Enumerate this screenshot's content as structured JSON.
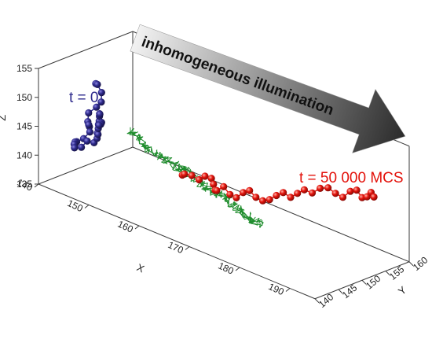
{
  "chart_data": {
    "type": "scatter",
    "projection": "3d",
    "axes": {
      "x": {
        "label": "X",
        "range": [
          140,
          195
        ],
        "ticks": [
          "140",
          "150",
          "160",
          "170",
          "180",
          "190"
        ]
      },
      "y": {
        "label": "Y",
        "range": [
          140,
          160
        ],
        "ticks": [
          "140",
          "145",
          "150",
          "155",
          "160"
        ]
      },
      "z": {
        "label": "Z",
        "range": [
          135,
          155
        ],
        "ticks": [
          "135",
          "140",
          "145",
          "150",
          "155"
        ]
      }
    },
    "annotations": {
      "start": "t = 0",
      "end": "t = 50 000 MCS",
      "arrow": "inhomogeneous illumination"
    },
    "colors": {
      "start_chain": "#2e2a8c",
      "end_chain": "#e3120b",
      "trajectory": "#1e8c2c",
      "arrow_dark": "#2b2b2b",
      "arrow_light": "#f2f2f2"
    },
    "series": [
      {
        "x": [
          142.3,
          143.1,
          144.2,
          144.8,
          144.6,
          143.4,
          143.9,
          144.6,
          145.2,
          146.1,
          145.4,
          144.5,
          143.7,
          143.2,
          142.6,
          142.1,
          142.9,
          143.5,
          144.3,
          145.1,
          145.8,
          146.5,
          147.2,
          147.9,
          148.7,
          149.4,
          150.1,
          150.8,
          151.7,
          151.1,
          150.4,
          149.6
        ],
        "y": [
          149.7,
          149.2,
          148.9,
          148.2,
          147.4,
          147.0,
          146.3,
          145.9,
          145.1,
          144.4,
          143.8,
          143.3,
          143.8,
          144.3,
          144.8,
          145.4,
          146.0,
          146.6,
          147.2,
          147.0,
          146.3,
          145.7,
          145.0,
          144.3,
          143.6,
          142.9,
          142.2,
          141.5,
          140.9,
          141.5,
          142.1,
          142.6
        ],
        "z": [
          150.1,
          150.4,
          149.5,
          148.3,
          147.6,
          146.3,
          145.2,
          144.7,
          145.5,
          144.8,
          143.6,
          142.9,
          142.4,
          141.7,
          141.3,
          140.3,
          140.5,
          141.6,
          141.4,
          142.5,
          143.9,
          144.1,
          145.6,
          146.8,
          147.9,
          149.2,
          150.1,
          150.5,
          149.6,
          149.1,
          148.4,
          147.8
        ]
      },
      {
        "x": [
          162.8,
          163.6,
          164.4,
          165.3,
          166.0,
          166.7,
          167.5,
          168.3,
          169.1,
          169.8,
          170.5,
          171.2,
          172.0,
          172.7,
          173.4,
          174.2,
          175.0,
          175.8,
          176.6,
          177.5,
          178.3,
          179.1,
          180.2,
          181.4,
          182.6,
          183.7,
          184.8,
          185.9,
          186.8,
          187.6,
          188.3,
          188.9,
          189.3
        ],
        "y": [
          146.2,
          145.8,
          146.5,
          147.1,
          147.6,
          148.2,
          147.8,
          147.3,
          146.8,
          147.5,
          148.1,
          148.7,
          149.3,
          149.9,
          150.5,
          151.1,
          151.7,
          152.3,
          152.9,
          153.5,
          154.1,
          154.7,
          155.2,
          155.6,
          156.0,
          156.4,
          156.8,
          157.2,
          157.6,
          157.9,
          158.2,
          158.4,
          158.6
        ],
        "z": [
          142.8,
          143.4,
          143.2,
          142.6,
          143.3,
          143.0,
          142.4,
          141.8,
          142.2,
          142.9,
          141.6,
          141.1,
          142.1,
          142.5,
          141.4,
          140.9,
          141.2,
          142.0,
          142.6,
          141.9,
          142.7,
          143.4,
          143.1,
          144.2,
          144.6,
          143.9,
          143.5,
          144.8,
          145.2,
          144.1,
          144.4,
          145.3,
          144.6
        ]
      }
    ],
    "trajectory_points": [
      [
        146.0,
        152.8,
        142.6
      ],
      [
        148.8,
        152.2,
        141.9
      ],
      [
        151.5,
        151.5,
        141.3
      ],
      [
        154.6,
        151.1,
        141.2
      ],
      [
        157.6,
        150.5,
        141.0
      ],
      [
        160.3,
        150.1,
        141.4
      ],
      [
        162.9,
        149.4,
        140.8
      ],
      [
        165.7,
        148.8,
        140.4
      ],
      [
        168.2,
        148.3,
        140.7
      ],
      [
        170.8,
        147.8,
        140.4
      ],
      [
        173.3,
        147.3,
        140.0
      ],
      [
        175.8,
        146.8,
        139.5
      ],
      [
        178.1,
        146.6,
        139.7
      ]
    ]
  }
}
